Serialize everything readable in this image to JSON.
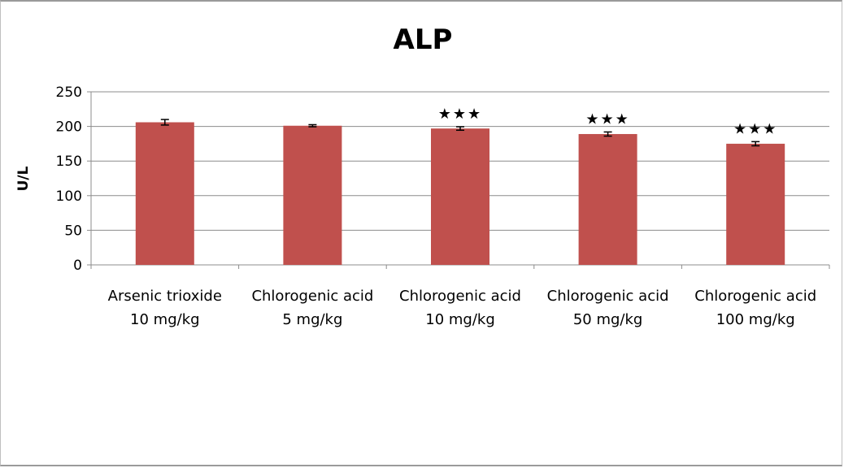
{
  "chart_data": {
    "type": "bar",
    "title": "ALP",
    "xlabel": "",
    "ylabel": "U/L",
    "ylim": [
      0,
      250
    ],
    "yticks": [
      0,
      50,
      100,
      150,
      200,
      250
    ],
    "grid": true,
    "legend": "none",
    "bar_color": "#c0504d",
    "categories": [
      [
        "Arsenic trioxide",
        "10 mg/kg"
      ],
      [
        "Chlorogenic acid",
        "5 mg/kg"
      ],
      [
        "Chlorogenic acid",
        "10 mg/kg"
      ],
      [
        "Chlorogenic acid",
        "50 mg/kg"
      ],
      [
        "Chlorogenic acid",
        "100 mg/kg"
      ]
    ],
    "values": [
      206,
      201,
      197,
      189,
      175
    ],
    "errors": [
      4,
      1.5,
      2.5,
      3,
      3
    ],
    "annotations": [
      "",
      "",
      "★★★",
      "★★★",
      "★★★"
    ]
  }
}
